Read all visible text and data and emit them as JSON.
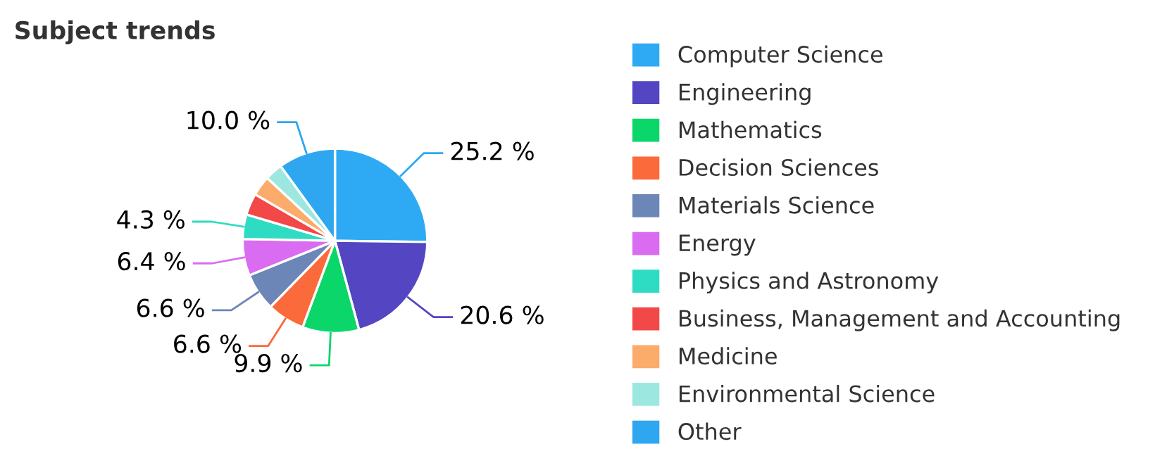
{
  "chart_data": {
    "type": "pie",
    "title": "Subject trends",
    "categories": [
      "Computer Science",
      "Engineering",
      "Mathematics",
      "Decision Sciences",
      "Materials Science",
      "Energy",
      "Physics and Astronomy",
      "Business, Management and Accounting",
      "Medicine",
      "Environmental Science",
      "Other"
    ],
    "values": [
      25.2,
      20.6,
      9.9,
      6.6,
      6.6,
      6.4,
      4.3,
      3.8,
      3.5,
      3.1,
      10.0
    ],
    "value_labels": [
      "25.2 %",
      "20.6 %",
      "9.9 %",
      "6.6 %",
      "6.6 %",
      "6.4 %",
      "4.3 %",
      null,
      null,
      null,
      "10.0 %"
    ],
    "colors": [
      "#2eaaf5",
      "#5446c2",
      "#0ad66a",
      "#fb6a3a",
      "#6c86b8",
      "#d96cf0",
      "#2edcc3",
      "#f34848",
      "#fbab6a",
      "#9ce8e0",
      "#2ea6f0"
    ],
    "legend": "right"
  }
}
